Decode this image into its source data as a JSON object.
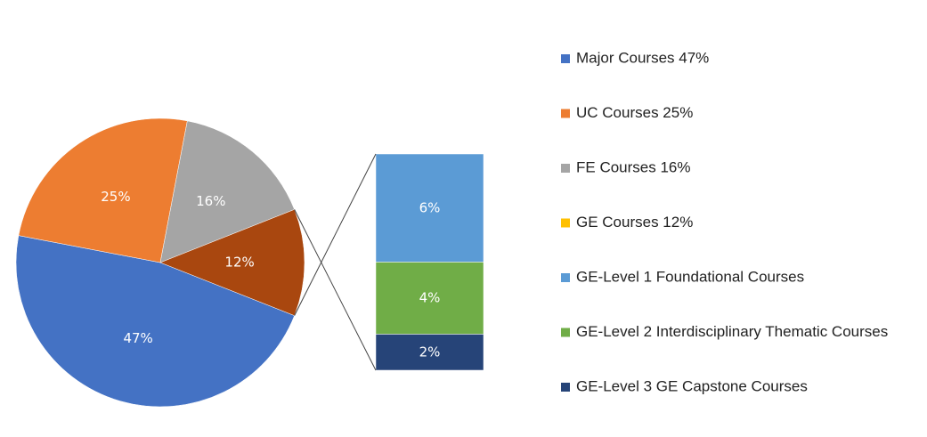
{
  "chart_data": {
    "type": "pie",
    "categories": [
      "Major Courses 47%",
      "UC Courses 25%",
      "FE Courses 16%",
      "GE Courses 12%"
    ],
    "values": [
      47,
      25,
      16,
      12
    ],
    "value_labels": [
      "47%",
      "25%",
      "16%",
      "12%"
    ],
    "colors": [
      "#4472c4",
      "#ed7d31",
      "#a5a5a5",
      "#a9470f"
    ],
    "legend_colors": [
      "#4472c4",
      "#ed7d31",
      "#a5a5a5",
      "#ffc000"
    ],
    "breakdown": {
      "type": "bar",
      "categories": [
        "GE-Level 1 Foundational Courses",
        "GE-Level 2 Interdisciplinary Thematic Courses",
        "GE-Level 3 GE Capstone Courses"
      ],
      "values": [
        6,
        4,
        2
      ],
      "value_labels": [
        "6%",
        "4%",
        "2%"
      ],
      "colors": [
        "#5b9bd5",
        "#70ad47",
        "#264478"
      ]
    }
  }
}
